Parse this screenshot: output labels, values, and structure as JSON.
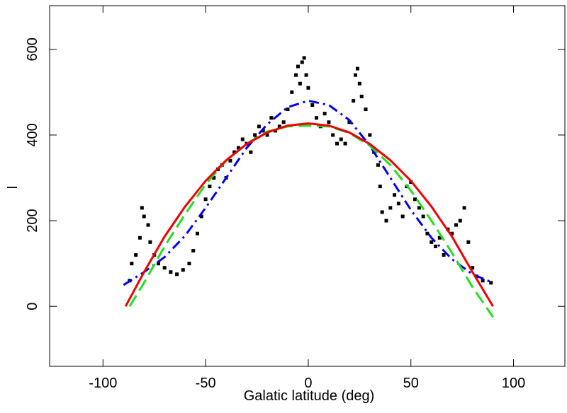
{
  "chart_data": {
    "type": "line",
    "xlabel": "Galatic latitude (deg)",
    "ylabel": "I",
    "xlim": [
      -126,
      125
    ],
    "ylim": [
      -140,
      702
    ],
    "xticks": [
      -100,
      -50,
      0,
      50,
      100
    ],
    "yticks": [
      0,
      200,
      400,
      600
    ],
    "series": [
      {
        "color": "#000000",
        "style": "dots",
        "x": [
          -87,
          -86,
          -84,
          -82,
          -81,
          -80,
          -78,
          -77,
          -75,
          -73,
          -70,
          -67,
          -64,
          -61,
          -58,
          -56,
          -54,
          -52,
          -50,
          -48,
          -46,
          -44,
          -42,
          -40,
          -38,
          -36,
          -34,
          -32,
          -30,
          -28,
          -26,
          -24,
          -22,
          -20,
          -18,
          -16,
          -14,
          -12,
          -10,
          -8,
          -6,
          -5,
          -4,
          -3,
          -2,
          -1,
          0,
          2,
          4,
          6,
          8,
          10,
          12,
          14,
          16,
          18,
          20,
          22,
          23,
          24,
          25,
          26,
          28,
          30,
          32,
          34,
          35,
          36,
          38,
          40,
          42,
          44,
          46,
          48,
          50,
          52,
          54,
          56,
          58,
          60,
          62,
          64,
          66,
          68,
          70,
          72,
          74,
          76,
          78,
          80,
          82,
          85,
          89
        ],
        "values": [
          60,
          100,
          120,
          160,
          230,
          210,
          190,
          150,
          120,
          100,
          90,
          80,
          75,
          85,
          100,
          130,
          170,
          210,
          250,
          280,
          300,
          320,
          330,
          300,
          340,
          360,
          370,
          390,
          380,
          360,
          400,
          420,
          410,
          400,
          440,
          410,
          420,
          430,
          460,
          500,
          540,
          560,
          520,
          570,
          580,
          540,
          510,
          470,
          440,
          420,
          450,
          430,
          400,
          380,
          390,
          380,
          430,
          480,
          540,
          555,
          520,
          490,
          460,
          400,
          360,
          330,
          280,
          220,
          200,
          230,
          260,
          240,
          210,
          280,
          290,
          250,
          230,
          210,
          170,
          150,
          140,
          160,
          120,
          180,
          170,
          190,
          200,
          230,
          150,
          90,
          70,
          60,
          55
        ]
      },
      {
        "color": "#0000ee",
        "style": "dashdot",
        "x": [
          -90,
          -80,
          -70,
          -60,
          -50,
          -40,
          -30,
          -20,
          -10,
          0,
          10,
          20,
          30,
          40,
          50,
          60,
          70,
          80,
          90
        ],
        "values": [
          50,
          80,
          115,
          165,
          230,
          300,
          370,
          425,
          465,
          480,
          470,
          435,
          375,
          300,
          225,
          160,
          110,
          75,
          55
        ]
      },
      {
        "color": "#22dd22",
        "style": "dashed",
        "x": [
          -87,
          -80,
          -70,
          -60,
          -50,
          -40,
          -30,
          -20,
          -10,
          0,
          10,
          20,
          30,
          40,
          50,
          60,
          70,
          80,
          90
        ],
        "values": [
          0,
          55,
          140,
          215,
          285,
          340,
          380,
          408,
          420,
          422,
          420,
          405,
          375,
          330,
          270,
          200,
          125,
          45,
          -25
        ]
      },
      {
        "color": "#ee0000",
        "style": "solid",
        "x": [
          -89,
          -80,
          -70,
          -60,
          -50,
          -40,
          -30,
          -20,
          -10,
          0,
          10,
          20,
          30,
          40,
          50,
          60,
          70,
          80,
          90
        ],
        "values": [
          0,
          80,
          163,
          233,
          293,
          341,
          379,
          406,
          422,
          427,
          422,
          406,
          379,
          341,
          293,
          233,
          163,
          80,
          0
        ]
      }
    ]
  }
}
